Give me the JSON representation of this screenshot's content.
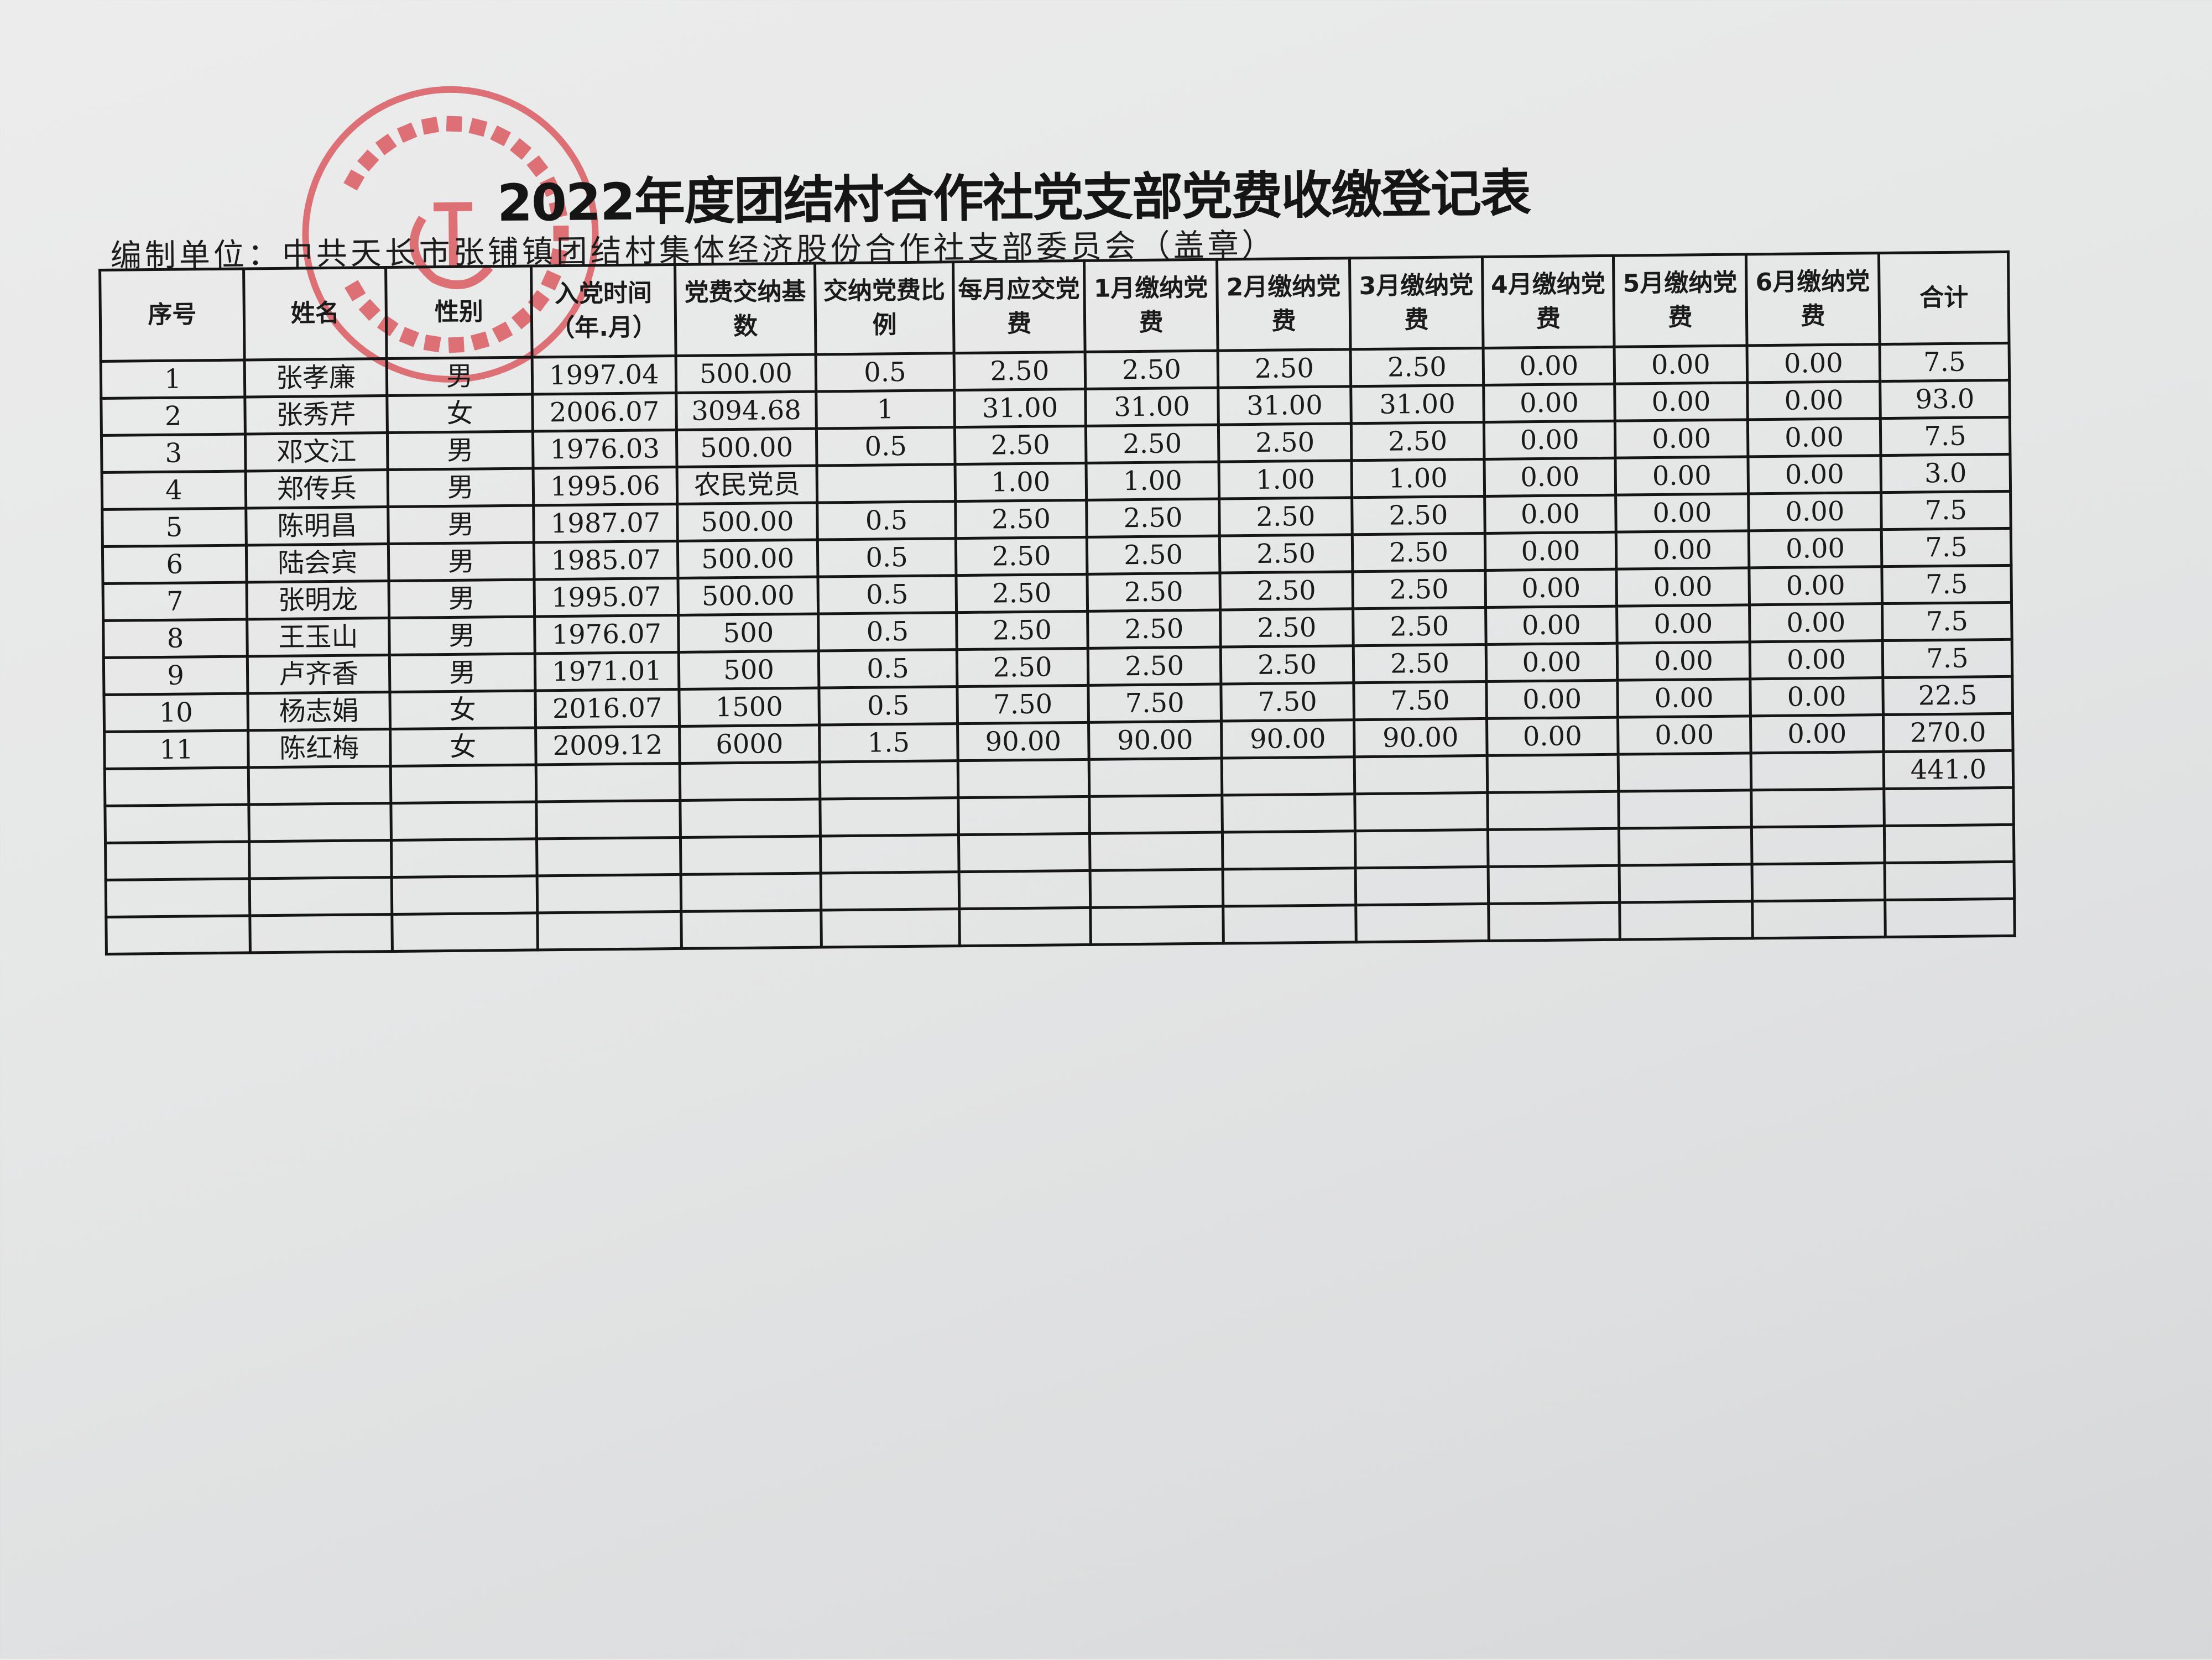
{
  "title": "2022年度团结村合作社党支部党费收缴登记表",
  "compiler_unit": "编制单位：中共天长市张铺镇团结村集体经济股份合作社支部委员会（盖章）",
  "stamp": {
    "text": "中共天长市张铺镇团结村集体经济股份合作社支部委员会",
    "color": "#d9484f"
  },
  "table": {
    "headers": [
      "序号",
      "姓名",
      "性别",
      "入党时间（年.月）",
      "党费交纳基数",
      "交纳党费比例",
      "每月应交党费",
      "1月缴纳党费",
      "2月缴纳党费",
      "3月缴纳党费",
      "4月缴纳党费",
      "5月缴纳党费",
      "6月缴纳党费",
      "合计"
    ],
    "rows": [
      [
        "1",
        "张孝廉",
        "男",
        "1997.04",
        "500.00",
        "0.5",
        "2.50",
        "2.50",
        "2.50",
        "2.50",
        "0.00",
        "0.00",
        "0.00",
        "7.5"
      ],
      [
        "2",
        "张秀芹",
        "女",
        "2006.07",
        "3094.68",
        "1",
        "31.00",
        "31.00",
        "31.00",
        "31.00",
        "0.00",
        "0.00",
        "0.00",
        "93.0"
      ],
      [
        "3",
        "邓文江",
        "男",
        "1976.03",
        "500.00",
        "0.5",
        "2.50",
        "2.50",
        "2.50",
        "2.50",
        "0.00",
        "0.00",
        "0.00",
        "7.5"
      ],
      [
        "4",
        "郑传兵",
        "男",
        "1995.06",
        "农民党员",
        "",
        "1.00",
        "1.00",
        "1.00",
        "1.00",
        "0.00",
        "0.00",
        "0.00",
        "3.0"
      ],
      [
        "5",
        "陈明昌",
        "男",
        "1987.07",
        "500.00",
        "0.5",
        "2.50",
        "2.50",
        "2.50",
        "2.50",
        "0.00",
        "0.00",
        "0.00",
        "7.5"
      ],
      [
        "6",
        "陆会宾",
        "男",
        "1985.07",
        "500.00",
        "0.5",
        "2.50",
        "2.50",
        "2.50",
        "2.50",
        "0.00",
        "0.00",
        "0.00",
        "7.5"
      ],
      [
        "7",
        "张明龙",
        "男",
        "1995.07",
        "500.00",
        "0.5",
        "2.50",
        "2.50",
        "2.50",
        "2.50",
        "0.00",
        "0.00",
        "0.00",
        "7.5"
      ],
      [
        "8",
        "王玉山",
        "男",
        "1976.07",
        "500",
        "0.5",
        "2.50",
        "2.50",
        "2.50",
        "2.50",
        "0.00",
        "0.00",
        "0.00",
        "7.5"
      ],
      [
        "9",
        "卢齐香",
        "男",
        "1971.01",
        "500",
        "0.5",
        "2.50",
        "2.50",
        "2.50",
        "2.50",
        "0.00",
        "0.00",
        "0.00",
        "7.5"
      ],
      [
        "10",
        "杨志娟",
        "女",
        "2016.07",
        "1500",
        "0.5",
        "7.50",
        "7.50",
        "7.50",
        "7.50",
        "0.00",
        "0.00",
        "0.00",
        "22.5"
      ],
      [
        "11",
        "陈红梅",
        "女",
        "2009.12",
        "6000",
        "1.5",
        "90.00",
        "90.00",
        "90.00",
        "90.00",
        "0.00",
        "0.00",
        "0.00",
        "270.0"
      ],
      [
        "",
        "",
        "",
        "",
        "",
        "",
        "",
        "",
        "",
        "",
        "",
        "",
        "",
        "441.0"
      ],
      [
        "",
        "",
        "",
        "",
        "",
        "",
        "",
        "",
        "",
        "",
        "",
        "",
        "",
        ""
      ],
      [
        "",
        "",
        "",
        "",
        "",
        "",
        "",
        "",
        "",
        "",
        "",
        "",
        "",
        ""
      ],
      [
        "",
        "",
        "",
        "",
        "",
        "",
        "",
        "",
        "",
        "",
        "",
        "",
        "",
        ""
      ],
      [
        "",
        "",
        "",
        "",
        "",
        "",
        "",
        "",
        "",
        "",
        "",
        "",
        "",
        ""
      ]
    ]
  }
}
